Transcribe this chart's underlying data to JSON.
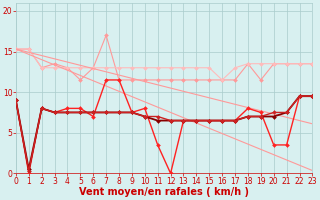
{
  "x": [
    0,
    1,
    2,
    3,
    4,
    5,
    6,
    7,
    8,
    9,
    10,
    11,
    12,
    13,
    14,
    15,
    16,
    17,
    18,
    19,
    20,
    21,
    22,
    23
  ],
  "series": [
    {
      "name": "light_zigzag",
      "y": [
        15.3,
        15.3,
        13.0,
        13.5,
        13.0,
        11.5,
        13.0,
        17.0,
        11.5,
        11.5,
        11.5,
        11.5,
        11.5,
        11.5,
        11.5,
        11.5,
        11.5,
        11.5,
        13.5,
        11.5,
        13.5,
        13.5,
        13.5,
        13.5
      ],
      "color": "#FF9999",
      "linewidth": 0.8,
      "marker": "D",
      "markersize": 2.0,
      "linestyle": "-"
    },
    {
      "name": "light_flat",
      "y": [
        15.3,
        15.3,
        13.0,
        13.0,
        13.0,
        13.0,
        13.0,
        13.0,
        13.0,
        13.0,
        13.0,
        13.0,
        13.0,
        13.0,
        13.0,
        13.0,
        11.5,
        13.0,
        13.5,
        13.5,
        13.5,
        13.5,
        13.5,
        13.5
      ],
      "color": "#FFBBBB",
      "linewidth": 0.8,
      "marker": "D",
      "markersize": 2.0,
      "linestyle": "-"
    },
    {
      "name": "diagonal_steep",
      "y": [
        15.3,
        14.65,
        14.0,
        13.35,
        12.7,
        12.05,
        11.4,
        10.75,
        10.1,
        9.45,
        8.8,
        8.15,
        7.5,
        6.85,
        6.2,
        5.55,
        4.9,
        4.25,
        3.6,
        2.95,
        2.3,
        1.65,
        1.0,
        0.35
      ],
      "color": "#FF9999",
      "linewidth": 0.8,
      "marker": null,
      "markersize": 0,
      "linestyle": "-"
    },
    {
      "name": "diagonal_shallow",
      "y": [
        15.3,
        14.9,
        14.5,
        14.1,
        13.7,
        13.3,
        12.9,
        12.5,
        12.1,
        11.7,
        11.3,
        10.9,
        10.5,
        10.1,
        9.7,
        9.3,
        8.9,
        8.5,
        8.1,
        7.7,
        7.3,
        6.9,
        6.5,
        6.1
      ],
      "color": "#FF9999",
      "linewidth": 0.8,
      "marker": null,
      "markersize": 0,
      "linestyle": "-"
    },
    {
      "name": "medium_volatile",
      "y": [
        9.0,
        0.0,
        8.0,
        7.5,
        8.0,
        8.0,
        7.0,
        11.5,
        11.5,
        7.5,
        8.0,
        3.5,
        0.0,
        6.5,
        6.5,
        6.5,
        6.5,
        6.5,
        8.0,
        7.5,
        3.5,
        3.5,
        9.5,
        9.5
      ],
      "color": "#FF2222",
      "linewidth": 1.0,
      "marker": "D",
      "markersize": 2.0,
      "linestyle": "-"
    },
    {
      "name": "dark_smooth",
      "y": [
        9.0,
        0.5,
        8.0,
        7.5,
        7.5,
        7.5,
        7.5,
        7.5,
        7.5,
        7.5,
        7.0,
        6.5,
        6.5,
        6.5,
        6.5,
        6.5,
        6.5,
        6.5,
        7.0,
        7.0,
        7.0,
        7.5,
        9.5,
        9.5
      ],
      "color": "#880000",
      "linewidth": 1.3,
      "marker": "D",
      "markersize": 2.0,
      "linestyle": "-"
    },
    {
      "name": "medium_smooth2",
      "y": [
        9.0,
        0.3,
        8.0,
        7.5,
        7.5,
        7.5,
        7.5,
        7.5,
        7.5,
        7.5,
        7.0,
        7.0,
        6.5,
        6.5,
        6.5,
        6.5,
        6.5,
        6.5,
        7.0,
        7.0,
        7.5,
        7.5,
        9.5,
        9.5
      ],
      "color": "#CC2222",
      "linewidth": 1.0,
      "marker": "D",
      "markersize": 2.0,
      "linestyle": "-"
    }
  ],
  "xlim": [
    0,
    23
  ],
  "ylim": [
    0,
    21
  ],
  "yticks": [
    0,
    5,
    10,
    15,
    20
  ],
  "xticks": [
    0,
    1,
    2,
    3,
    4,
    5,
    6,
    7,
    8,
    9,
    10,
    11,
    12,
    13,
    14,
    15,
    16,
    17,
    18,
    19,
    20,
    21,
    22,
    23
  ],
  "xlabel": "Vent moyen/en rafales ( km/h )",
  "background_color": "#D8F0F0",
  "grid_color": "#AACCCC",
  "tick_label_color": "#CC0000",
  "axis_label_color": "#CC0000",
  "xlabel_fontsize": 7,
  "tick_fontsize": 5.5,
  "figsize": [
    3.2,
    2.0
  ],
  "dpi": 100
}
